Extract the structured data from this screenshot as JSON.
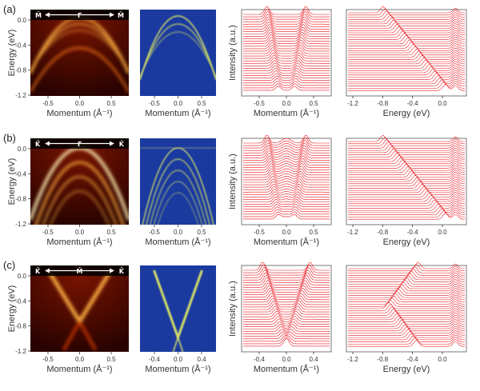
{
  "rows": [
    {
      "label": "(a)",
      "direction": {
        "left": "M̄",
        "center": "Γ̄",
        "right": "M̄"
      },
      "energy_ticks": [
        "0.0",
        "-0.4",
        "-0.8",
        "-1.2"
      ],
      "momentum_ticks_arpes": [
        "-0.5",
        "0.0",
        "0.5"
      ],
      "momentum_ticks_curv": [
        "-0.5",
        "0.0",
        "0.5"
      ],
      "momentum_ticks_mdc": [
        "-0.5",
        "0.0",
        "0.5"
      ],
      "energy_ticks_edc": [
        "-1.2",
        "-0.8",
        "-0.4",
        "0.0"
      ]
    },
    {
      "label": "(b)",
      "direction": {
        "left": "K̄",
        "center": "Γ̄",
        "right": "K̄"
      },
      "energy_ticks": [
        "0.0",
        "-0.4",
        "-0.8",
        "-1.2"
      ],
      "momentum_ticks_arpes": [
        "-0.5",
        "0.0",
        "0.5"
      ],
      "momentum_ticks_curv": [
        "-0.5",
        "0.0",
        "0.5"
      ],
      "momentum_ticks_mdc": [
        "-0.5",
        "0.0",
        "0.5"
      ],
      "energy_ticks_edc": [
        "-1.2",
        "-0.8",
        "-0.4",
        "0.0"
      ]
    },
    {
      "label": "(c)",
      "direction": {
        "left": "K̄",
        "center": "M̄",
        "right": "K̄"
      },
      "energy_ticks": [
        "0.0",
        "-0.4",
        "-0.8",
        "-1.2"
      ],
      "momentum_ticks_arpes": [
        "-0.5",
        "0.0",
        "0.5"
      ],
      "momentum_ticks_curv": [
        "-0.4",
        "0.0",
        "0.4"
      ],
      "momentum_ticks_mdc": [
        "-0.4",
        "0.0",
        "0.4"
      ],
      "energy_ticks_edc": [
        "-1.2",
        "-0.8",
        "-0.4",
        "0.0"
      ]
    }
  ],
  "labels": {
    "energy_axis": "Energy (eV)",
    "momentum_axis": "Momentum (Å⁻¹)",
    "intensity_axis": "Intensity (a.u.)"
  },
  "colors": {
    "trace": "#e8141a",
    "arpes_bg": "#3a0400",
    "arpes_band": "#ffb040",
    "curv_bg": "#1a3aa0",
    "curv_band": "#e8f060"
  }
}
